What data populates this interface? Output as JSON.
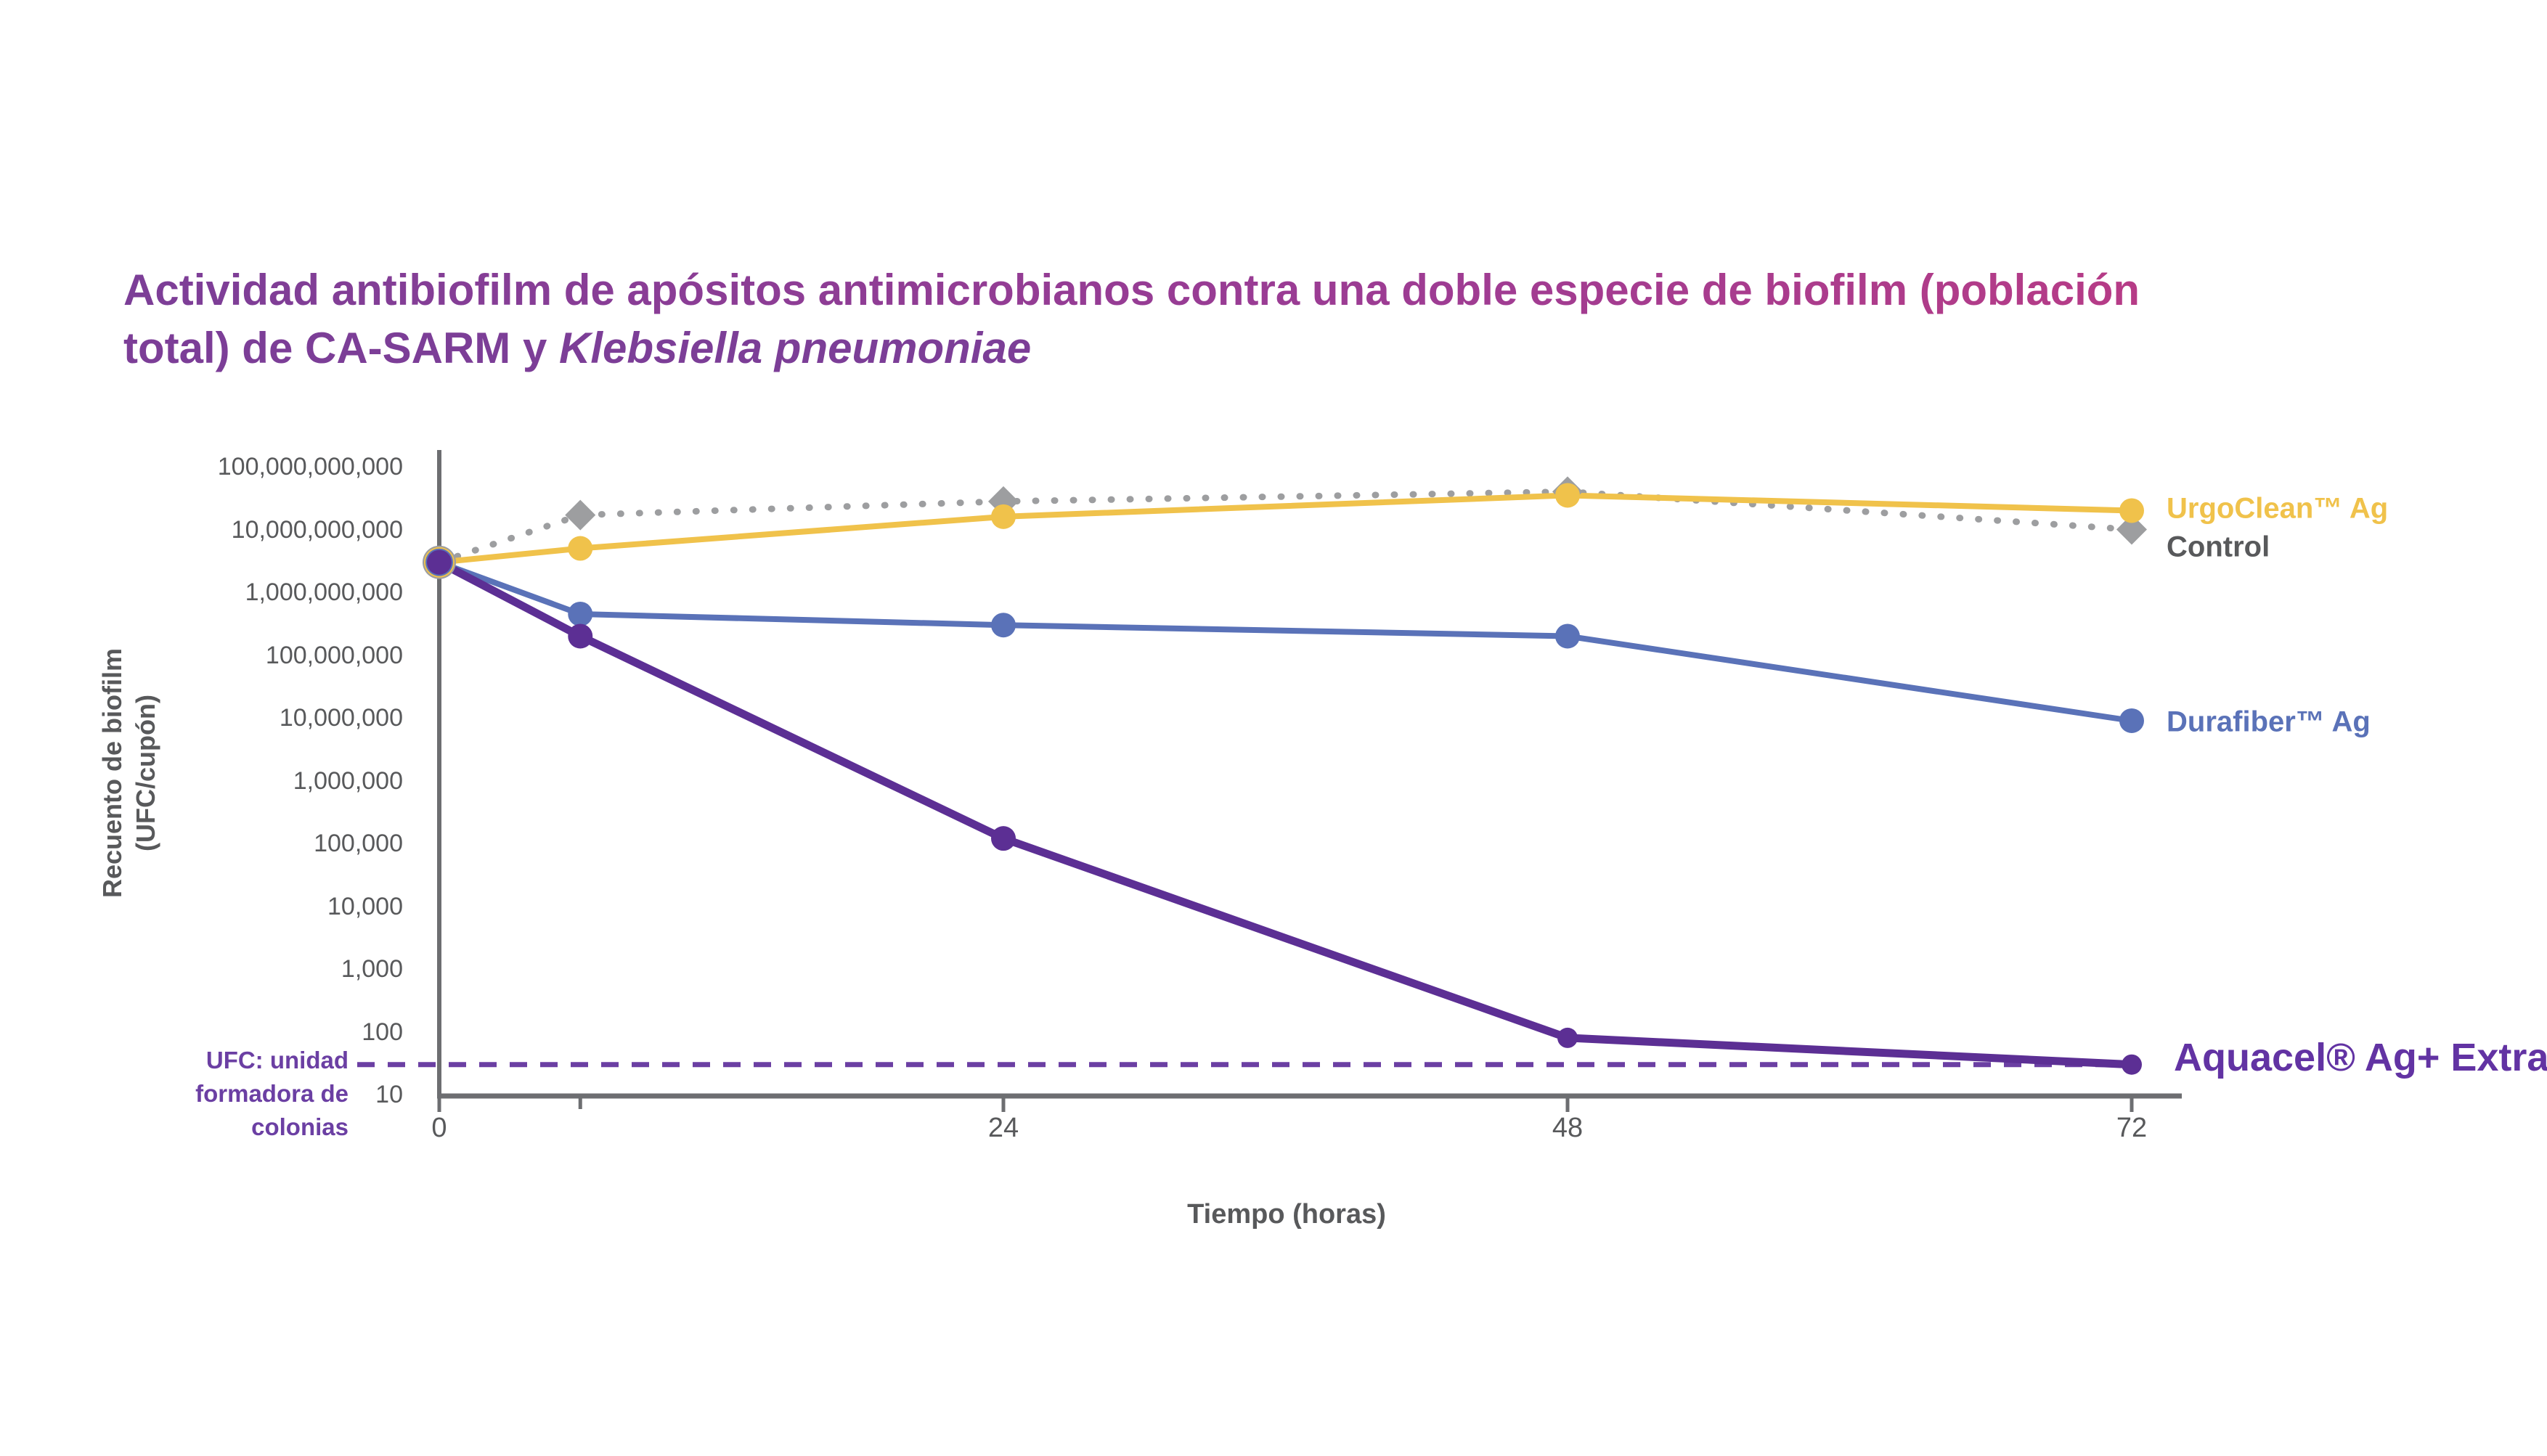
{
  "title": {
    "line1": "Actividad antibiofilm de apósitos antimicrobianos contra una doble especie de biofilm (población",
    "line2_prefix": "total) de CA-SARM y ",
    "line2_italic": "Klebsiella pneumoniae"
  },
  "footnote": {
    "line1": "UFC: unidad",
    "line2": "formadora de",
    "line3": "colonias"
  },
  "chart_data": {
    "type": "line",
    "title": "Actividad antibiofilm de apósitos antimicrobianos contra una doble especie de biofilm (población total) de CA-SARM y Klebsiella pneumoniae",
    "xlabel": "Tiempo (horas)",
    "ylabel": "Recuento de biofilm (UFC/cupón)",
    "ylabel_line1": "Recuento de biofilm",
    "ylabel_line2": "(UFC/cupón)",
    "y_scale": "log10",
    "ylim": [
      10,
      100000000000
    ],
    "grid": false,
    "legend_position": "right-of-line-ends",
    "x": [
      0,
      6,
      24,
      48,
      72
    ],
    "x_major_ticks": [
      0,
      24,
      48,
      72
    ],
    "x_major_tick_labels": [
      "0",
      "24",
      "48",
      "72"
    ],
    "x_minor_ticks": [
      6
    ],
    "y_ticks": [
      {
        "label": "100,000,000,000",
        "value": 100000000000
      },
      {
        "label": "10,000,000,000",
        "value": 10000000000
      },
      {
        "label": "1,000,000,000",
        "value": 1000000000
      },
      {
        "label": "100,000,000",
        "value": 100000000
      },
      {
        "label": "10,000,000",
        "value": 10000000
      },
      {
        "label": "1,000,000",
        "value": 1000000
      },
      {
        "label": "100,000",
        "value": 100000
      },
      {
        "label": "10,000",
        "value": 10000
      },
      {
        "label": "1,000",
        "value": 1000
      },
      {
        "label": "100",
        "value": 100
      },
      {
        "label": "10",
        "value": 10
      }
    ],
    "detection_limit_line": {
      "value": 30,
      "style": "dashed",
      "color": "#6B3FA3"
    },
    "series": [
      {
        "name": "Control",
        "label": "Control",
        "color": "#9D9EA0",
        "label_color": "#58595B",
        "marker": "diamond",
        "line_style": "dotted",
        "values": [
          3000000000,
          17000000000,
          28000000000,
          40000000000,
          10000000000
        ]
      },
      {
        "name": "UrgoClean Ag",
        "label": "UrgoClean™ Ag",
        "color": "#F0C24B",
        "label_color": "#F0C24B",
        "marker": "circle",
        "line_style": "solid",
        "values": [
          3000000000,
          5000000000,
          16000000000,
          35000000000,
          20000000000
        ]
      },
      {
        "name": "Durafiber Ag",
        "label": "Durafiber™ Ag",
        "color": "#5A72B8",
        "label_color": "#5A72B8",
        "marker": "circle",
        "line_style": "solid",
        "values": [
          3000000000,
          450000000,
          300000000,
          200000000,
          9000000
        ]
      },
      {
        "name": "Aquacel Ag+ Extra",
        "label": "Aquacel® Ag+ Extra™",
        "color": "#5C2F94",
        "label_color": "#6233A3",
        "marker": "circle",
        "line_style": "solid",
        "values": [
          3000000000,
          200000000,
          120000,
          80,
          30
        ]
      }
    ]
  }
}
